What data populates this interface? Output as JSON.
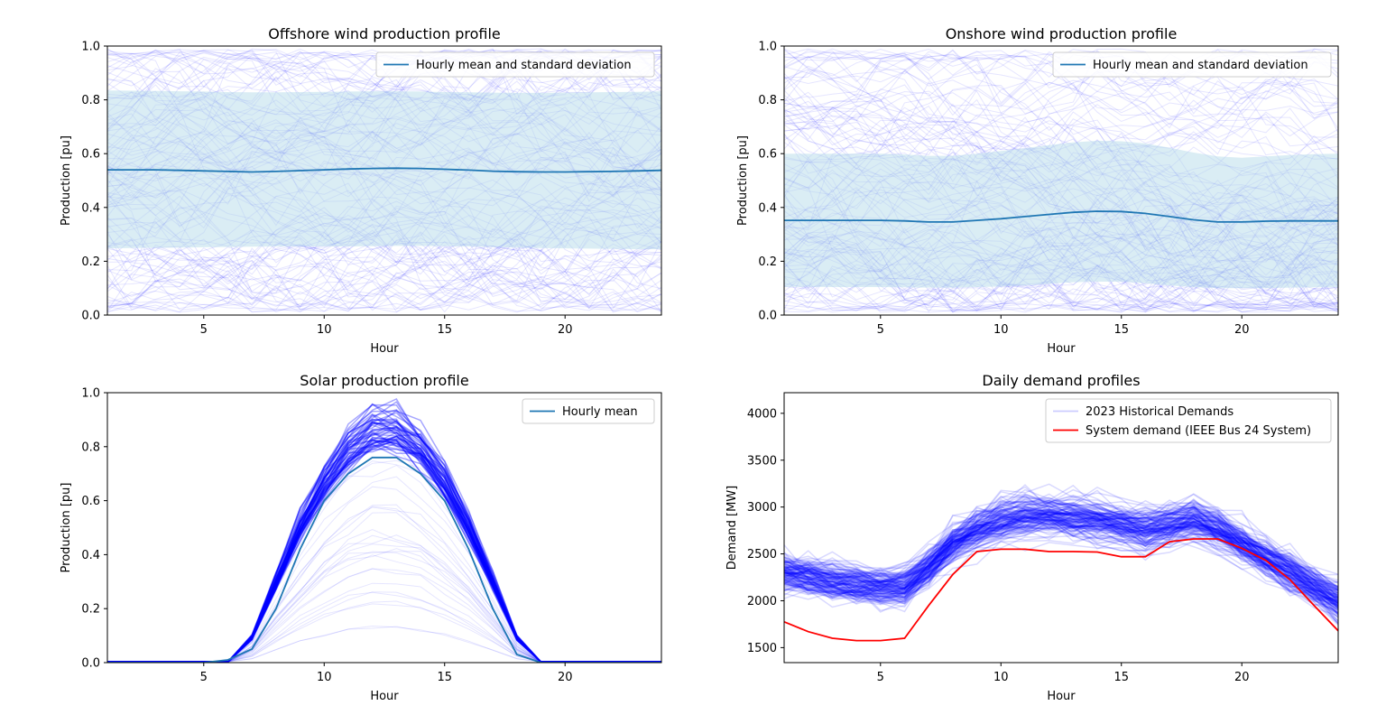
{
  "chart_data": [
    {
      "type": "line",
      "title": "Offshore wind production profile",
      "xlabel": "Hour",
      "ylabel": "Production [pu]",
      "xlim": [
        1,
        24
      ],
      "ylim": [
        0,
        1
      ],
      "xticks": [
        5,
        10,
        15,
        20
      ],
      "yticks": [
        0.0,
        0.2,
        0.4,
        0.6,
        0.8,
        1.0
      ],
      "ytick_labels": [
        "0.0",
        "0.2",
        "0.4",
        "0.6",
        "0.8",
        "1.0"
      ],
      "legend": {
        "placement": "top-right",
        "entries": [
          "Hourly mean and standard deviation"
        ]
      },
      "series": [
        {
          "name": "Hourly mean and standard deviation",
          "x": [
            1,
            2,
            3,
            4,
            5,
            6,
            7,
            8,
            9,
            10,
            11,
            12,
            13,
            14,
            15,
            16,
            17,
            18,
            19,
            20,
            21,
            22,
            23,
            24
          ],
          "values": [
            0.54,
            0.54,
            0.54,
            0.538,
            0.536,
            0.534,
            0.532,
            0.534,
            0.537,
            0.54,
            0.543,
            0.545,
            0.546,
            0.545,
            0.542,
            0.539,
            0.535,
            0.533,
            0.532,
            0.532,
            0.533,
            0.534,
            0.536,
            0.538
          ],
          "upper": [
            0.835,
            0.834,
            0.833,
            0.832,
            0.831,
            0.829,
            0.828,
            0.828,
            0.829,
            0.83,
            0.831,
            0.832,
            0.832,
            0.831,
            0.829,
            0.828,
            0.827,
            0.826,
            0.826,
            0.827,
            0.828,
            0.829,
            0.83,
            0.832
          ],
          "lower": [
            0.248,
            0.249,
            0.25,
            0.251,
            0.252,
            0.253,
            0.254,
            0.255,
            0.255,
            0.255,
            0.255,
            0.256,
            0.257,
            0.257,
            0.256,
            0.255,
            0.253,
            0.251,
            0.249,
            0.248,
            0.247,
            0.246,
            0.245,
            0.245
          ]
        }
      ],
      "background_scenarios": {
        "count": 120,
        "color": "#0000ff",
        "range": [
          0.0,
          1.0
        ]
      }
    },
    {
      "type": "line",
      "title": "Onshore wind production profile",
      "xlabel": "Hour",
      "ylabel": "Production [pu]",
      "xlim": [
        1,
        24
      ],
      "ylim": [
        0,
        1
      ],
      "xticks": [
        5,
        10,
        15,
        20
      ],
      "yticks": [
        0.0,
        0.2,
        0.4,
        0.6,
        0.8,
        1.0
      ],
      "ytick_labels": [
        "0.0",
        "0.2",
        "0.4",
        "0.6",
        "0.8",
        "1.0"
      ],
      "legend": {
        "placement": "top-right",
        "entries": [
          "Hourly mean and standard deviation"
        ]
      },
      "series": [
        {
          "name": "Hourly mean and standard deviation",
          "x": [
            1,
            2,
            3,
            4,
            5,
            6,
            7,
            8,
            9,
            10,
            11,
            12,
            13,
            14,
            15,
            16,
            17,
            18,
            19,
            20,
            21,
            22,
            23,
            24
          ],
          "values": [
            0.352,
            0.352,
            0.352,
            0.352,
            0.352,
            0.35,
            0.346,
            0.346,
            0.352,
            0.358,
            0.366,
            0.374,
            0.382,
            0.386,
            0.385,
            0.378,
            0.366,
            0.354,
            0.346,
            0.346,
            0.349,
            0.35,
            0.35,
            0.35
          ],
          "upper": [
            0.6,
            0.6,
            0.6,
            0.6,
            0.6,
            0.597,
            0.592,
            0.592,
            0.6,
            0.61,
            0.62,
            0.632,
            0.642,
            0.648,
            0.646,
            0.638,
            0.622,
            0.604,
            0.59,
            0.585,
            0.59,
            0.595,
            0.598,
            0.6
          ],
          "lower": [
            0.105,
            0.105,
            0.104,
            0.104,
            0.104,
            0.103,
            0.102,
            0.102,
            0.104,
            0.106,
            0.11,
            0.116,
            0.122,
            0.124,
            0.124,
            0.118,
            0.11,
            0.104,
            0.1,
            0.1,
            0.1,
            0.102,
            0.103,
            0.103
          ]
        }
      ],
      "background_scenarios": {
        "count": 120,
        "color": "#0000ff",
        "range": [
          0.0,
          1.0
        ]
      }
    },
    {
      "type": "line",
      "title": "Solar production profile",
      "xlabel": "Hour",
      "ylabel": "Production [pu]",
      "xlim": [
        1,
        24
      ],
      "ylim": [
        0,
        1
      ],
      "xticks": [
        5,
        10,
        15,
        20
      ],
      "yticks": [
        0.0,
        0.2,
        0.4,
        0.6,
        0.8,
        1.0
      ],
      "ytick_labels": [
        "0.0",
        "0.2",
        "0.4",
        "0.6",
        "0.8",
        "1.0"
      ],
      "legend": {
        "placement": "top-right",
        "entries": [
          "Hourly mean"
        ]
      },
      "series": [
        {
          "name": "Hourly mean",
          "x": [
            1,
            2,
            3,
            4,
            5,
            6,
            7,
            8,
            9,
            10,
            11,
            12,
            13,
            14,
            15,
            16,
            17,
            18,
            19,
            20,
            21,
            22,
            23,
            24
          ],
          "values": [
            0,
            0,
            0,
            0,
            0,
            0.01,
            0.05,
            0.2,
            0.42,
            0.6,
            0.7,
            0.76,
            0.76,
            0.7,
            0.6,
            0.42,
            0.2,
            0.03,
            0,
            0,
            0,
            0,
            0,
            0
          ]
        }
      ],
      "background_scenarios": {
        "count": 80,
        "color": "#0000ff",
        "peak_range": [
          0.3,
          0.95
        ]
      }
    },
    {
      "type": "line",
      "title": "Daily demand profiles",
      "xlabel": "Hour",
      "ylabel": "Demand [MW]",
      "xlim": [
        1,
        24
      ],
      "ylim": [
        1340,
        4220
      ],
      "xticks": [
        5,
        10,
        15,
        20
      ],
      "yticks": [
        1500,
        2000,
        2500,
        3000,
        3500,
        4000
      ],
      "ytick_labels": [
        "1500",
        "2000",
        "2500",
        "3000",
        "3500",
        "4000"
      ],
      "legend": {
        "placement": "top-right",
        "entries": [
          "2023 Historical Demands",
          "System demand (IEEE Bus 24 System)"
        ]
      },
      "historical": {
        "name": "2023 Historical Demands",
        "color": "#0000ff",
        "count": 150,
        "base": [
          2300,
          2250,
          2200,
          2170,
          2150,
          2160,
          2350,
          2600,
          2750,
          2850,
          2900,
          2900,
          2870,
          2850,
          2800,
          2750,
          2800,
          2850,
          2750,
          2600,
          2450,
          2300,
          2150,
          2000
        ]
      },
      "series": [
        {
          "name": "System demand (IEEE Bus 24 System)",
          "color": "#ff0000",
          "x": [
            1,
            2,
            3,
            4,
            5,
            6,
            7,
            8,
            9,
            10,
            11,
            12,
            13,
            14,
            15,
            16,
            17,
            18,
            19,
            20,
            21,
            22,
            23,
            24
          ],
          "values": [
            1775,
            1670,
            1600,
            1575,
            1575,
            1600,
            1950,
            2280,
            2525,
            2550,
            2550,
            2525,
            2525,
            2520,
            2470,
            2470,
            2630,
            2660,
            2660,
            2560,
            2430,
            2225,
            1950,
            1680
          ]
        }
      ]
    }
  ]
}
